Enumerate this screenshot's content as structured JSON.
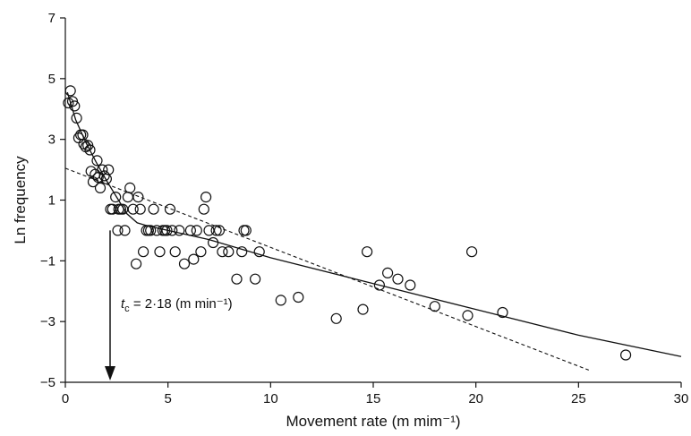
{
  "chart_data": {
    "type": "scatter",
    "title": "",
    "xlabel": "Movement rate (m mim⁻¹)",
    "ylabel": "Ln frequency",
    "xlim": [
      0,
      30
    ],
    "ylim": [
      -5,
      7
    ],
    "xticks": [
      0,
      5,
      10,
      15,
      20,
      25,
      30
    ],
    "yticks": [
      -5,
      -3,
      -1,
      1,
      3,
      5,
      7
    ],
    "xtick_labels": [
      "0",
      "5",
      "10",
      "15",
      "20",
      "25",
      "30"
    ],
    "ytick_labels": [
      "−5",
      "−3",
      "−1",
      "1",
      "3",
      "5",
      "7"
    ],
    "grid": false,
    "legend": "none",
    "series": [
      {
        "marker": "open-circle",
        "points": [
          [
            0.15,
            4.2
          ],
          [
            0.25,
            4.6
          ],
          [
            0.35,
            4.25
          ],
          [
            0.45,
            4.1
          ],
          [
            0.55,
            3.7
          ],
          [
            0.65,
            3.05
          ],
          [
            0.75,
            3.15
          ],
          [
            0.85,
            3.15
          ],
          [
            0.9,
            2.85
          ],
          [
            1.0,
            2.75
          ],
          [
            1.1,
            2.8
          ],
          [
            1.2,
            2.65
          ],
          [
            1.25,
            1.95
          ],
          [
            1.35,
            1.6
          ],
          [
            1.45,
            1.85
          ],
          [
            1.55,
            2.3
          ],
          [
            1.6,
            1.75
          ],
          [
            1.7,
            1.4
          ],
          [
            1.8,
            2.0
          ],
          [
            1.9,
            1.8
          ],
          [
            2.0,
            1.7
          ],
          [
            2.1,
            2.0
          ],
          [
            2.2,
            0.7
          ],
          [
            2.3,
            0.7
          ],
          [
            2.45,
            1.1
          ],
          [
            2.55,
            0.0
          ],
          [
            2.6,
            0.7
          ],
          [
            2.7,
            0.7
          ],
          [
            2.8,
            0.7
          ],
          [
            2.9,
            0.0
          ],
          [
            3.05,
            1.1
          ],
          [
            3.15,
            1.4
          ],
          [
            3.3,
            0.7
          ],
          [
            3.45,
            -1.1
          ],
          [
            3.55,
            1.1
          ],
          [
            3.65,
            0.7
          ],
          [
            3.8,
            -0.7
          ],
          [
            3.95,
            0.0
          ],
          [
            4.05,
            0.0
          ],
          [
            4.15,
            0.0
          ],
          [
            4.3,
            0.7
          ],
          [
            4.45,
            0.0
          ],
          [
            4.6,
            -0.7
          ],
          [
            4.75,
            0.0
          ],
          [
            4.85,
            0.0
          ],
          [
            4.95,
            0.0
          ],
          [
            5.1,
            0.7
          ],
          [
            5.2,
            0.0
          ],
          [
            5.35,
            -0.7
          ],
          [
            5.55,
            0.0
          ],
          [
            5.8,
            -1.1
          ],
          [
            6.1,
            0.0
          ],
          [
            6.25,
            -0.95
          ],
          [
            6.4,
            0.0
          ],
          [
            6.6,
            -0.7
          ],
          [
            6.75,
            0.7
          ],
          [
            6.85,
            1.1
          ],
          [
            7.0,
            0.0
          ],
          [
            7.2,
            -0.4
          ],
          [
            7.35,
            0.0
          ],
          [
            7.5,
            0.0
          ],
          [
            7.65,
            -0.7
          ],
          [
            7.95,
            -0.7
          ],
          [
            8.35,
            -1.6
          ],
          [
            8.6,
            -0.7
          ],
          [
            8.7,
            0.0
          ],
          [
            8.8,
            0.0
          ],
          [
            9.25,
            -1.6
          ],
          [
            9.45,
            -0.7
          ],
          [
            10.5,
            -2.3
          ],
          [
            11.35,
            -2.2
          ],
          [
            13.2,
            -2.9
          ],
          [
            14.5,
            -2.6
          ],
          [
            14.7,
            -0.7
          ],
          [
            15.3,
            -1.8
          ],
          [
            15.7,
            -1.4
          ],
          [
            16.2,
            -1.6
          ],
          [
            16.8,
            -1.8
          ],
          [
            18.0,
            -2.5
          ],
          [
            19.6,
            -2.8
          ],
          [
            19.8,
            -0.7
          ],
          [
            21.3,
            -2.7
          ],
          [
            27.3,
            -4.1
          ]
        ]
      }
    ],
    "lines": [
      {
        "style": "solid",
        "points": [
          [
            0.1,
            4.55
          ],
          [
            0.5,
            3.65
          ],
          [
            1.0,
            2.9
          ],
          [
            1.5,
            2.25
          ],
          [
            2.0,
            1.65
          ],
          [
            2.5,
            1.1
          ],
          [
            3.0,
            0.55
          ],
          [
            3.5,
            0.25
          ],
          [
            4.0,
            0.15
          ],
          [
            5.0,
            0.0
          ],
          [
            6.0,
            -0.15
          ],
          [
            7.0,
            -0.3
          ],
          [
            8.0,
            -0.5
          ],
          [
            10.0,
            -0.9
          ],
          [
            15.0,
            -1.75
          ],
          [
            20.0,
            -2.6
          ],
          [
            25.0,
            -3.45
          ],
          [
            30.0,
            -4.15
          ]
        ]
      },
      {
        "style": "dashed",
        "points": [
          [
            0.0,
            2.05
          ],
          [
            25.5,
            -4.6
          ]
        ]
      }
    ],
    "annotations": [
      {
        "text_main": "t",
        "text_sub": "c",
        "text_rest": " = 2·18 (m min⁻¹)",
        "x": 2.18,
        "arrow_from_y": 0.0,
        "arrow_to_y": -5
      }
    ]
  }
}
